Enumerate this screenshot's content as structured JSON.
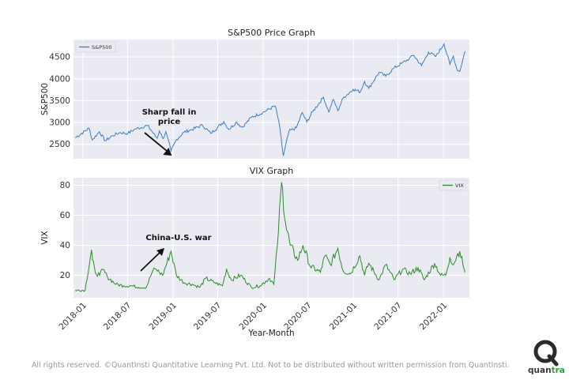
{
  "charts": [
    {
      "type": "line",
      "title": "S&P500 Price Graph",
      "ylabel": "S&P500",
      "ylim": [
        2170,
        4900
      ],
      "yticks": [
        2500,
        3000,
        3500,
        4000,
        4500
      ],
      "legend": {
        "label": "S&P500",
        "position": "top-left"
      },
      "color": "#3b7fc4",
      "annotation": {
        "text_line1": "Sharp fall in",
        "text_line2": "price",
        "date": "2018-12-24",
        "value": 2351
      }
    },
    {
      "type": "line",
      "title": "VIX Graph",
      "ylabel": "VIX",
      "xlabel": "Year-Month",
      "ylim": [
        5,
        85
      ],
      "yticks": [
        20,
        40,
        60,
        80
      ],
      "legend": {
        "label": "VIX",
        "position": "top-right"
      },
      "color": "#2e8b2e",
      "annotation": {
        "text": "China-U.S. war",
        "date": "2018-12-24",
        "value": 36
      }
    }
  ],
  "chart_data": [
    {
      "type": "line",
      "title": "S&P500 Price Graph",
      "ylabel": "S&P500",
      "series": [
        {
          "name": "S&P500",
          "x": [
            "2017-12-01",
            "2018-01-26",
            "2018-02-08",
            "2018-03-09",
            "2018-04-02",
            "2018-05-01",
            "2018-06-01",
            "2018-07-02",
            "2018-08-01",
            "2018-09-20",
            "2018-10-10",
            "2018-10-29",
            "2018-11-07",
            "2018-11-23",
            "2018-12-03",
            "2018-12-24",
            "2019-01-15",
            "2019-02-15",
            "2019-03-15",
            "2019-04-30",
            "2019-06-03",
            "2019-07-26",
            "2019-08-15",
            "2019-09-16",
            "2019-10-08",
            "2019-11-15",
            "2019-12-31",
            "2020-02-19",
            "2020-03-05",
            "2020-03-23",
            "2020-04-15",
            "2020-05-15",
            "2020-06-08",
            "2020-06-26",
            "2020-07-20",
            "2020-09-02",
            "2020-09-23",
            "2020-10-12",
            "2020-10-30",
            "2020-11-20",
            "2020-12-31",
            "2021-01-29",
            "2021-02-15",
            "2021-03-04",
            "2021-04-15",
            "2021-05-12",
            "2021-06-15",
            "2021-07-15",
            "2021-08-15",
            "2021-09-02",
            "2021-10-04",
            "2021-11-01",
            "2021-12-01",
            "2022-01-03",
            "2022-01-27",
            "2022-02-10",
            "2022-02-24",
            "2022-03-08",
            "2022-03-29"
          ],
          "y": [
            2650,
            2870,
            2600,
            2790,
            2580,
            2700,
            2770,
            2750,
            2850,
            2930,
            2780,
            2640,
            2810,
            2630,
            2790,
            2351,
            2610,
            2780,
            2830,
            2940,
            2750,
            3020,
            2840,
            3010,
            2890,
            3120,
            3230,
            3380,
            3020,
            2237,
            2800,
            2880,
            3230,
            3010,
            3250,
            3580,
            3240,
            3530,
            3270,
            3560,
            3760,
            3700,
            3940,
            3780,
            4150,
            4060,
            4250,
            4350,
            4460,
            4540,
            4300,
            4610,
            4510,
            4800,
            4330,
            4520,
            4220,
            4170,
            4630
          ]
        }
      ]
    },
    {
      "type": "line",
      "title": "VIX Graph",
      "ylabel": "VIX",
      "xlabel": "Year-Month",
      "x_ticks": [
        "2018-01",
        "2018-07",
        "2019-01",
        "2019-07",
        "2020-01",
        "2020-07",
        "2021-01",
        "2021-07",
        "2022-01"
      ],
      "series": [
        {
          "name": "VIX",
          "x": [
            "2017-12-01",
            "2018-01-10",
            "2018-02-05",
            "2018-02-09",
            "2018-02-20",
            "2018-03-10",
            "2018-03-23",
            "2018-04-10",
            "2018-05-15",
            "2018-06-15",
            "2018-07-15",
            "2018-08-15",
            "2018-09-15",
            "2018-10-11",
            "2018-10-25",
            "2018-11-20",
            "2018-12-24",
            "2019-01-15",
            "2019-02-15",
            "2019-03-20",
            "2019-04-20",
            "2019-05-14",
            "2019-06-20",
            "2019-07-20",
            "2019-08-06",
            "2019-08-25",
            "2019-10-02",
            "2019-11-15",
            "2019-12-20",
            "2020-01-27",
            "2020-02-14",
            "2020-02-28",
            "2020-03-16",
            "2020-04-01",
            "2020-04-20",
            "2020-05-20",
            "2020-06-11",
            "2020-07-10",
            "2020-08-20",
            "2020-09-08",
            "2020-09-30",
            "2020-10-30",
            "2020-11-20",
            "2020-12-20",
            "2021-01-27",
            "2021-02-15",
            "2021-03-04",
            "2021-04-15",
            "2021-05-12",
            "2021-06-15",
            "2021-07-19",
            "2021-08-19",
            "2021-09-20",
            "2021-10-15",
            "2021-11-26",
            "2021-12-20",
            "2022-01-10",
            "2022-01-27",
            "2022-02-10",
            "2022-02-24",
            "2022-03-08",
            "2022-03-29"
          ],
          "y": [
            10,
            10,
            37,
            30,
            22,
            20,
            24,
            19,
            14,
            13,
            13,
            12,
            12,
            23,
            24,
            20,
            36,
            20,
            15,
            14,
            12,
            18,
            15,
            13,
            24,
            17,
            20,
            12,
            13,
            18,
            14,
            40,
            82,
            55,
            40,
            30,
            40,
            26,
            22,
            33,
            27,
            38,
            23,
            21,
            33,
            20,
            28,
            17,
            27,
            17,
            24,
            21,
            25,
            17,
            28,
            20,
            20,
            32,
            27,
            33,
            36,
            22
          ]
        }
      ]
    }
  ],
  "footer": "All rights reserved. ©QuantInsti Quantitative Learning Pvt. Ltd. Not to be distributed without written permission from QuantInsti.",
  "logo": {
    "part1": "quan",
    "part2": "tra"
  }
}
